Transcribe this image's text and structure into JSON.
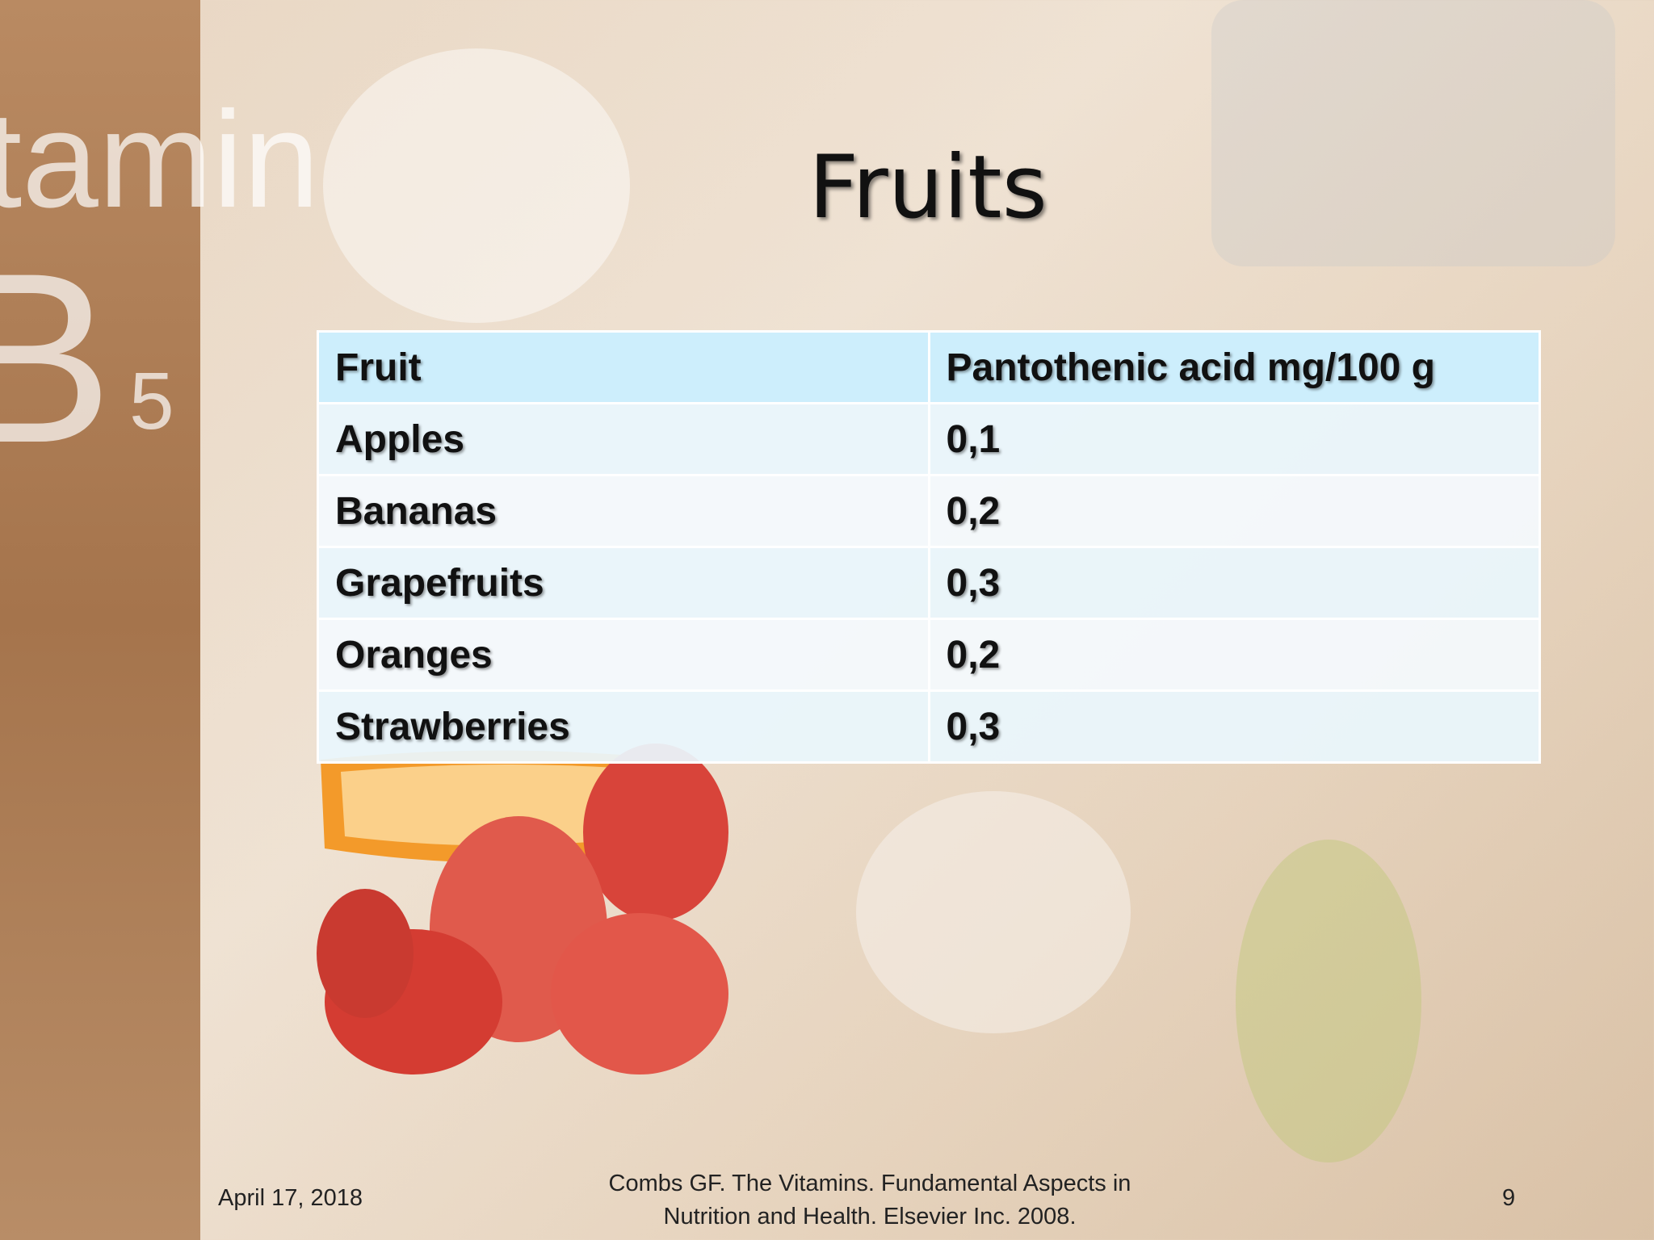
{
  "background": {
    "texts": [
      "tamin",
      "B",
      "5"
    ]
  },
  "title": "Fruits",
  "table": {
    "header": [
      "Fruit",
      "Pantothenic acid mg/100 g"
    ],
    "rows": [
      [
        "Apples",
        "0,1"
      ],
      [
        "Bananas",
        "0,2"
      ],
      [
        "Grapefruits",
        "0,3"
      ],
      [
        "Oranges",
        "0,2"
      ],
      [
        "Strawberries",
        "0,3"
      ]
    ]
  },
  "footer": {
    "date": "April 17, 2018",
    "citation": [
      "Combs GF. The Vitamins. Fundamental Aspects in",
      "Nutrition and Health. Elsevier Inc. 2008."
    ],
    "page": "9"
  }
}
